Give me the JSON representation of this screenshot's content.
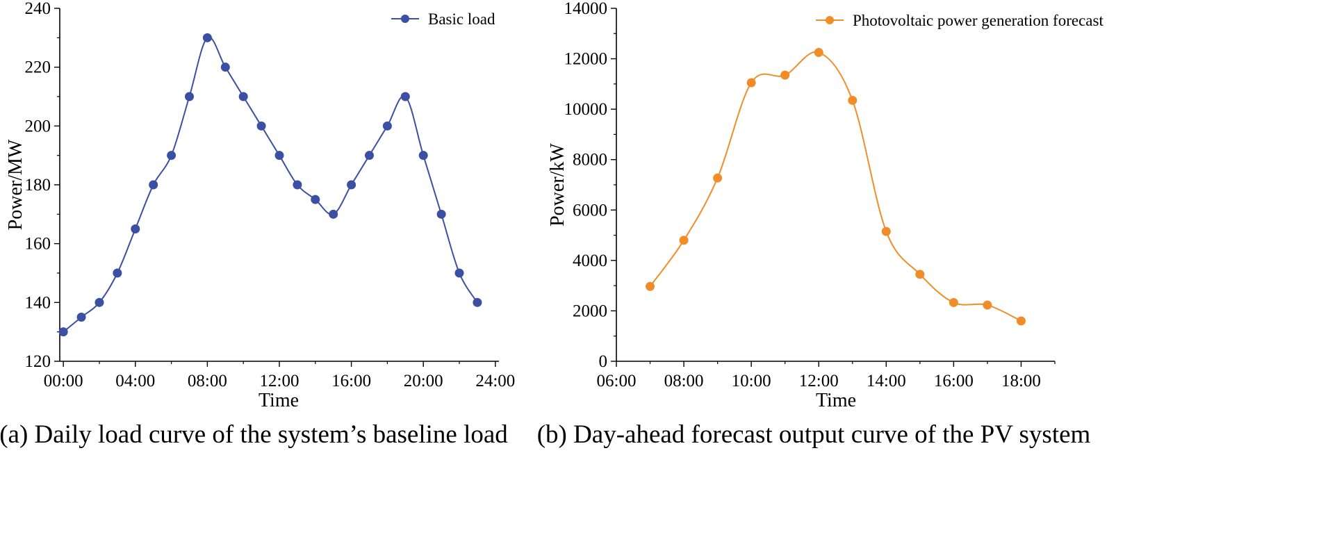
{
  "chart_data": [
    {
      "type": "line",
      "caption": "(a) Daily load curve of the system’s baseline load",
      "xlabel": "Time",
      "ylabel": "Power/MW",
      "x_tick_labels": [
        "00:00",
        "04:00",
        "08:00",
        "12:00",
        "16:00",
        "20:00",
        "24:00"
      ],
      "x_ticks": [
        0,
        4,
        8,
        12,
        16,
        20,
        24
      ],
      "xlim": [
        -0.2,
        24.2
      ],
      "ylim": [
        120,
        240
      ],
      "y_ticks": [
        120,
        140,
        160,
        180,
        200,
        220,
        240
      ],
      "legend_position": "top-right",
      "series": [
        {
          "name": "Basic load",
          "color": "#3b4fa3",
          "x": [
            0,
            1,
            2,
            3,
            4,
            5,
            6,
            7,
            8,
            9,
            10,
            11,
            12,
            13,
            14,
            15,
            16,
            17,
            18,
            19,
            20,
            21,
            22,
            23
          ],
          "values": [
            130,
            135,
            140,
            150,
            165,
            180,
            190,
            210,
            230,
            220,
            210,
            200,
            190,
            180,
            175,
            170,
            180,
            190,
            200,
            210,
            190,
            170,
            150,
            140
          ]
        }
      ]
    },
    {
      "type": "line",
      "caption": "(b) Day-ahead forecast output curve of the PV system",
      "xlabel": "Time",
      "ylabel": "Power/kW",
      "x_tick_labels": [
        "06:00",
        "08:00",
        "10:00",
        "12:00",
        "14:00",
        "16:00",
        "18:00"
      ],
      "x_ticks": [
        6,
        8,
        10,
        12,
        14,
        16,
        18
      ],
      "xlim": [
        6,
        19
      ],
      "ylim": [
        0,
        14000
      ],
      "y_ticks": [
        0,
        2000,
        4000,
        6000,
        8000,
        10000,
        12000,
        14000
      ],
      "legend_position": "top-right",
      "series": [
        {
          "name": "Photovoltaic power generation forecast",
          "color": "#f28c28",
          "x": [
            7,
            8,
            9,
            10,
            11,
            12,
            13,
            14,
            15,
            16,
            17,
            18
          ],
          "values": [
            2970,
            4800,
            7270,
            11050,
            11350,
            12250,
            10350,
            5150,
            3450,
            2330,
            2230,
            1600
          ]
        }
      ]
    }
  ]
}
